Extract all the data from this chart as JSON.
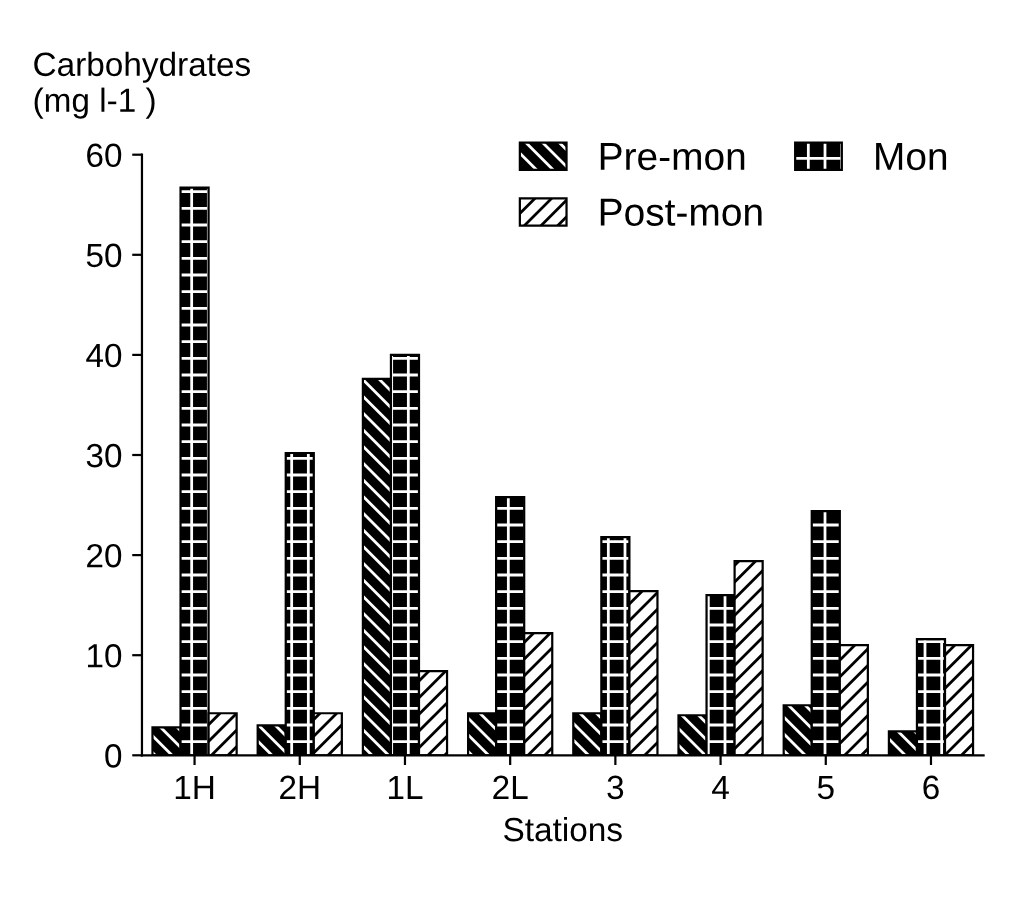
{
  "chart_data": {
    "type": "bar",
    "ylabel": "Carbohydrates\n(mg l-1 )",
    "xlabel": "Stations",
    "categories": [
      "1H",
      "2H",
      "1L",
      "2L",
      "3",
      "4",
      "5",
      "6"
    ],
    "series": [
      {
        "name": "Pre-mon",
        "color": "#000000",
        "values": [
          2.8,
          3,
          37.6,
          4.2,
          4.2,
          4,
          5,
          2.4
        ]
      },
      {
        "name": "Mon",
        "color": "#000000",
        "values": [
          56.7,
          30.2,
          40,
          25.8,
          21.8,
          16,
          24.4,
          11.6
        ]
      },
      {
        "name": "Post-mon",
        "color": "#000000",
        "values": [
          4.2,
          4.2,
          8.4,
          12.2,
          16.4,
          19.4,
          11,
          11
        ]
      }
    ],
    "ylim": [
      0,
      60
    ],
    "yticks": [
      0,
      10,
      20,
      30,
      40,
      50,
      60
    ],
    "grid": false,
    "legend": "top right"
  }
}
